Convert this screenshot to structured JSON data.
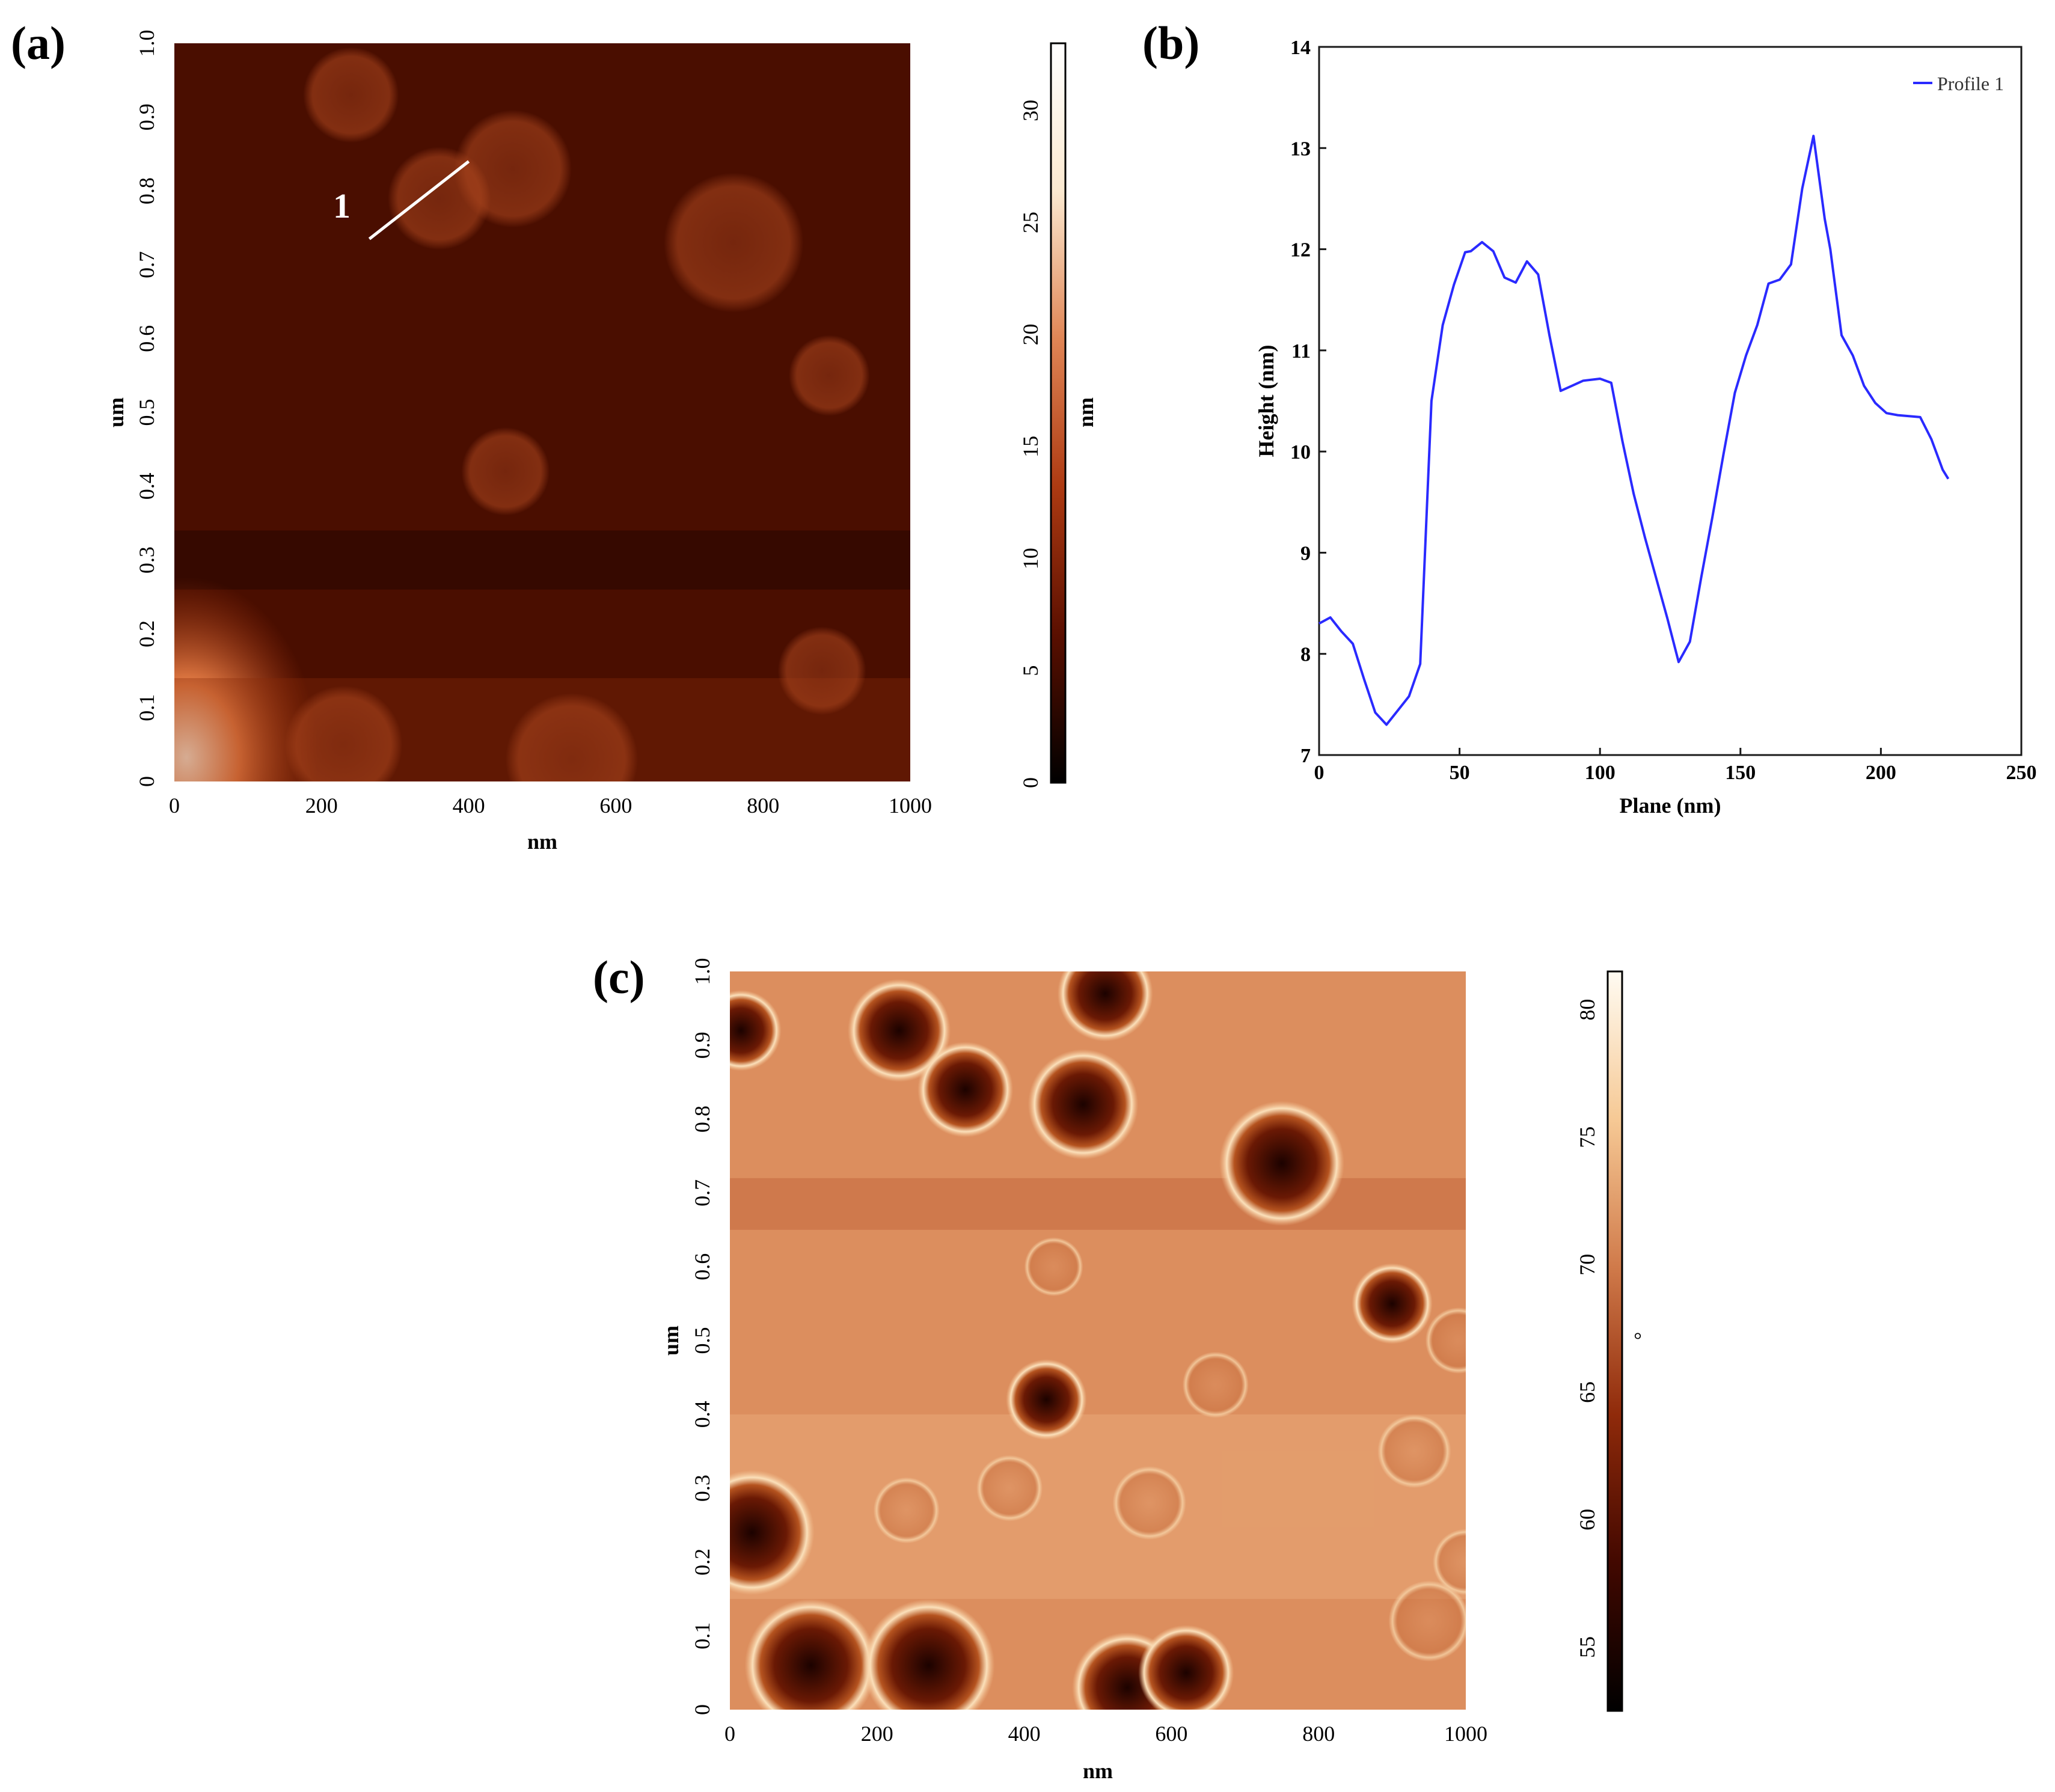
{
  "panels": {
    "a": {
      "letter": "(a)",
      "xlabel": "nm",
      "ylabel": "um",
      "x_ticks": [
        "0",
        "200",
        "400",
        "600",
        "800",
        "1000"
      ],
      "y_ticks": [
        "0",
        "0.1",
        "0.2",
        "0.3",
        "0.4",
        "0.5",
        "0.6",
        "0.7",
        "0.8",
        "0.9",
        "1.0"
      ],
      "colorbar": {
        "label": "nm",
        "ticks": [
          "0",
          "5",
          "10",
          "15",
          "20",
          "25",
          "30"
        ],
        "range": [
          0,
          33
        ]
      },
      "line_label": "1",
      "line_endpoints_nm": [
        [
          265,
          735
        ],
        [
          400,
          840
        ]
      ],
      "blobs_nm": [
        {
          "x": 240,
          "y": 930,
          "r": 65
        },
        {
          "x": 460,
          "y": 830,
          "r": 80
        },
        {
          "x": 360,
          "y": 790,
          "r": 70
        },
        {
          "x": 760,
          "y": 730,
          "r": 95
        },
        {
          "x": 890,
          "y": 550,
          "r": 55
        },
        {
          "x": 450,
          "y": 420,
          "r": 60
        },
        {
          "x": 230,
          "y": 50,
          "r": 80
        },
        {
          "x": 540,
          "y": 30,
          "r": 90
        },
        {
          "x": 880,
          "y": 150,
          "r": 60
        }
      ],
      "colors": [
        "#000000",
        "#5a0f00",
        "#ad3a12",
        "#e08555",
        "#fbe9d0",
        "#ffffff"
      ]
    },
    "b": {
      "letter": "(b)",
      "legend": "Profile 1",
      "line_color": "#2a2aff",
      "frame_color": "#1a1a1a"
    },
    "c": {
      "letter": "(c)",
      "xlabel": "nm",
      "ylabel": "um",
      "x_ticks": [
        "0",
        "200",
        "400",
        "600",
        "800",
        "1000"
      ],
      "y_ticks": [
        "0",
        "0.1",
        "0.2",
        "0.3",
        "0.4",
        "0.5",
        "0.6",
        "0.7",
        "0.8",
        "0.9",
        "1.0"
      ],
      "colorbar": {
        "label": "°",
        "ticks": [
          "55",
          "60",
          "65",
          "70",
          "75",
          "80"
        ],
        "range": [
          52.5,
          81.5
        ]
      },
      "background_color": "#dc8e5e",
      "ring_color": "#f9d9b0",
      "dark_blobs_nm": [
        {
          "x": 230,
          "y": 920,
          "r": 70
        },
        {
          "x": 320,
          "y": 840,
          "r": 65
        },
        {
          "x": 480,
          "y": 820,
          "r": 75
        },
        {
          "x": 750,
          "y": 740,
          "r": 85
        },
        {
          "x": 510,
          "y": 970,
          "r": 65
        },
        {
          "x": 900,
          "y": 550,
          "r": 55
        },
        {
          "x": 430,
          "y": 420,
          "r": 55
        },
        {
          "x": 30,
          "y": 240,
          "r": 85
        },
        {
          "x": 110,
          "y": 60,
          "r": 90
        },
        {
          "x": 270,
          "y": 60,
          "r": 90
        },
        {
          "x": 540,
          "y": 30,
          "r": 75
        },
        {
          "x": 620,
          "y": 50,
          "r": 65
        },
        {
          "x": 15,
          "y": 920,
          "r": 55
        }
      ],
      "faint_blobs_nm": [
        {
          "x": 240,
          "y": 270,
          "r": 45
        },
        {
          "x": 380,
          "y": 300,
          "r": 45
        },
        {
          "x": 570,
          "y": 280,
          "r": 50
        },
        {
          "x": 930,
          "y": 350,
          "r": 50
        },
        {
          "x": 660,
          "y": 440,
          "r": 45
        },
        {
          "x": 990,
          "y": 500,
          "r": 45
        },
        {
          "x": 440,
          "y": 600,
          "r": 40
        },
        {
          "x": 950,
          "y": 120,
          "r": 55
        },
        {
          "x": 1000,
          "y": 200,
          "r": 45
        }
      ],
      "colors": [
        "#000000",
        "#420800",
        "#8f2a0a",
        "#d07a4a",
        "#f6c995",
        "#fffbf2"
      ]
    }
  },
  "chart_data": [
    {
      "type": "heatmap",
      "panel": "(a)",
      "description_axes": "AFM height image",
      "xlabel": "nm",
      "ylabel": "um",
      "xlim": [
        0,
        1000
      ],
      "ylim": [
        0,
        1.0
      ],
      "colorbar_label": "nm",
      "color_range": [
        0,
        33
      ]
    },
    {
      "type": "line",
      "panel": "(b)",
      "xlabel": "Plane (nm)",
      "ylabel": "Height (nm)",
      "xlim": [
        0,
        250
      ],
      "ylim": [
        7,
        14
      ],
      "x_ticks": [
        0,
        50,
        100,
        150,
        200,
        250
      ],
      "y_ticks": [
        7,
        8,
        9,
        10,
        11,
        12,
        13,
        14
      ],
      "legend_position": "top-right",
      "series": [
        {
          "name": "Profile 1",
          "x": [
            0,
            4,
            8,
            12,
            16,
            20,
            24,
            28,
            32,
            36,
            40,
            44,
            48,
            52,
            54,
            58,
            62,
            66,
            70,
            74,
            78,
            82,
            86,
            90,
            94,
            100,
            104,
            108,
            112,
            116,
            120,
            124,
            128,
            132,
            136,
            140,
            144,
            148,
            152,
            156,
            160,
            164,
            168,
            172,
            176,
            180,
            182,
            186,
            190,
            194,
            198,
            202,
            206,
            210,
            214,
            218,
            222,
            224
          ],
          "y": [
            8.3,
            8.36,
            8.22,
            8.1,
            7.75,
            7.42,
            7.3,
            7.44,
            7.58,
            7.9,
            10.5,
            11.25,
            11.65,
            11.97,
            11.98,
            12.07,
            11.98,
            11.72,
            11.67,
            11.88,
            11.75,
            11.15,
            10.6,
            10.65,
            10.7,
            10.72,
            10.68,
            10.1,
            9.58,
            9.15,
            8.75,
            8.35,
            7.92,
            8.12,
            8.75,
            9.35,
            9.98,
            10.58,
            10.95,
            11.25,
            11.66,
            11.7,
            11.85,
            12.6,
            13.12,
            12.3,
            12.0,
            11.15,
            10.95,
            10.65,
            10.48,
            10.38,
            10.36,
            10.35,
            10.34,
            10.12,
            9.82,
            9.73
          ]
        }
      ]
    },
    {
      "type": "heatmap",
      "panel": "(c)",
      "description_axes": "AFM phase image",
      "xlabel": "nm",
      "ylabel": "um",
      "xlim": [
        0,
        1000
      ],
      "ylim": [
        0,
        1.0
      ],
      "colorbar_label": "°",
      "color_range": [
        52.5,
        81.5
      ]
    }
  ]
}
